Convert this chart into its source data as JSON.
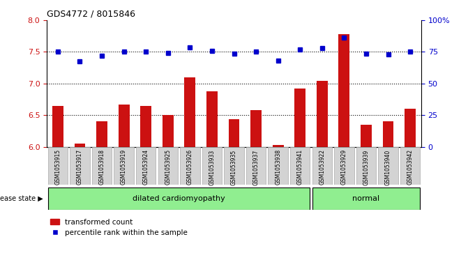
{
  "title": "GDS4772 / 8015846",
  "samples": [
    "GSM1053915",
    "GSM1053917",
    "GSM1053918",
    "GSM1053919",
    "GSM1053924",
    "GSM1053925",
    "GSM1053926",
    "GSM1053933",
    "GSM1053935",
    "GSM1053937",
    "GSM1053938",
    "GSM1053941",
    "GSM1053922",
    "GSM1053929",
    "GSM1053939",
    "GSM1053940",
    "GSM1053942"
  ],
  "bar_values": [
    6.65,
    6.05,
    6.4,
    6.67,
    6.64,
    6.5,
    7.1,
    6.88,
    6.44,
    6.58,
    6.03,
    6.92,
    7.04,
    7.78,
    6.35,
    6.4,
    6.6
  ],
  "dot_values": [
    7.51,
    7.35,
    7.44,
    7.51,
    7.5,
    7.48,
    7.57,
    7.52,
    7.47,
    7.5,
    7.36,
    7.54,
    7.56,
    7.72,
    7.47,
    7.46,
    7.5
  ],
  "bar_color": "#cc1111",
  "dot_color": "#0000cc",
  "ylim_left": [
    6.0,
    8.0
  ],
  "ylim_right": [
    0,
    100
  ],
  "yticks_left": [
    6.0,
    6.5,
    7.0,
    7.5,
    8.0
  ],
  "yticks_right": [
    0,
    25,
    50,
    75,
    100
  ],
  "ytick_labels_right": [
    "0",
    "25",
    "50",
    "75",
    "100%"
  ],
  "hlines": [
    6.5,
    7.0,
    7.5
  ],
  "groups": [
    {
      "label": "dilated cardiomyopathy",
      "start": 0,
      "end": 11,
      "color": "#90ee90"
    },
    {
      "label": "normal",
      "start": 12,
      "end": 16,
      "color": "#90ee90"
    }
  ],
  "legend_bar_label": "transformed count",
  "legend_dot_label": "percentile rank within the sample",
  "disease_state_label": "disease state",
  "bar_axis_color": "#cc1111",
  "dot_axis_color": "#0000cc",
  "background_color": "#ffffff",
  "tick_area_color": "#d3d3d3"
}
